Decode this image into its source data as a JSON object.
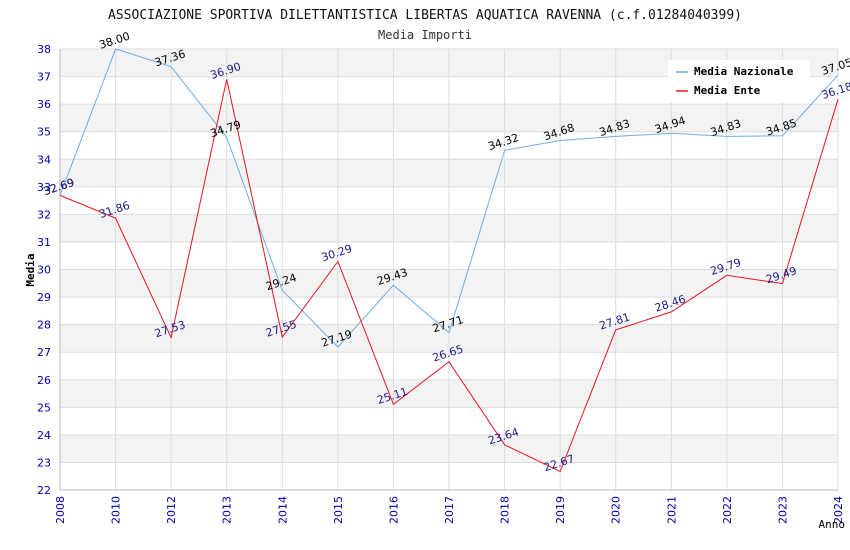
{
  "chart_data": {
    "type": "line",
    "title": "ASSOCIAZIONE SPORTIVA DILETTANTISTICA LIBERTAS AQUATICA RAVENNA (c.f.01284040399)",
    "subtitle": "Media Importi",
    "xlabel": "Anno",
    "ylabel": "Media",
    "ylim": [
      22,
      38
    ],
    "yticks": [
      22,
      23,
      24,
      25,
      26,
      27,
      28,
      29,
      30,
      31,
      32,
      33,
      34,
      35,
      36,
      37,
      38
    ],
    "categories": [
      "2008",
      "2010",
      "2012",
      "2013",
      "2014",
      "2015",
      "2016",
      "2017",
      "2018",
      "2019",
      "2020",
      "2021",
      "2022",
      "2023",
      "2024"
    ],
    "grid": true,
    "legend_position": "top-right",
    "series": [
      {
        "name": "Media Nazionale",
        "color": "#6aaee8",
        "label_color": "#000000",
        "values": [
          32.69,
          38.0,
          37.36,
          34.79,
          29.24,
          27.19,
          29.43,
          27.71,
          34.32,
          34.68,
          34.83,
          34.94,
          34.83,
          34.85,
          37.05
        ],
        "labels": [
          "32.69",
          "38.00",
          "37.36",
          "34.79",
          "29.24",
          "27.19",
          "29.43",
          "27.71",
          "34.32",
          "34.68",
          "34.83",
          "34.94",
          "34.83",
          "34.85",
          "37.05"
        ]
      },
      {
        "name": "Media Ente",
        "color": "#e8141e",
        "label_color": "#1a1a8c",
        "values": [
          32.69,
          31.86,
          27.53,
          36.9,
          27.55,
          30.29,
          25.11,
          26.65,
          23.64,
          22.67,
          27.81,
          28.46,
          29.79,
          29.49,
          36.18
        ],
        "labels": [
          "32.69",
          "31.86",
          "27.53",
          "36.90",
          "27.55",
          "30.29",
          "25.11",
          "26.65",
          "23.64",
          "22.67",
          "27.81",
          "28.46",
          "29.79",
          "29.49",
          "36.18"
        ]
      }
    ]
  },
  "colors": {
    "axis_tick_text": "#0000aa",
    "band": "#f3f3f3",
    "gridline": "#dddddd",
    "title_text": "#111111"
  }
}
